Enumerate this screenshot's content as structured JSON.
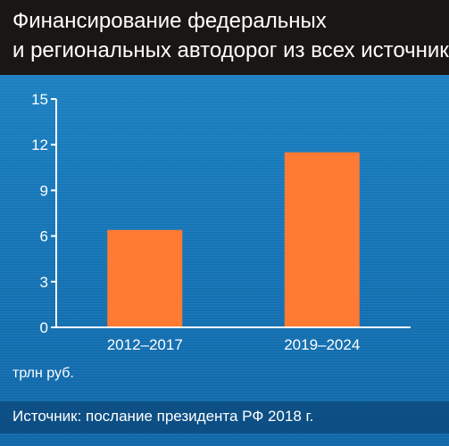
{
  "header": {
    "title_line1": "Финансирование федеральных",
    "title_line2": "и региональных автодорог из всех источников"
  },
  "unit_label": "трлн руб.",
  "source": "Источник: послание президента РФ 2018 г.",
  "colors": {
    "background": "#1677b8",
    "title_bar": "#1a1614",
    "bar": "#ff7a33",
    "axis": "#ffffff"
  },
  "chart_data": {
    "type": "bar",
    "categories": [
      "2012–2017",
      "2019–2024"
    ],
    "values": [
      6.4,
      11.5
    ],
    "title": "Финансирование федеральных и региональных автодорог из всех источников",
    "xlabel": "",
    "ylabel": "трлн руб.",
    "ylim": [
      0,
      15
    ],
    "yticks": [
      0,
      3,
      6,
      9,
      12,
      15
    ],
    "grid": false,
    "legend": "none"
  }
}
